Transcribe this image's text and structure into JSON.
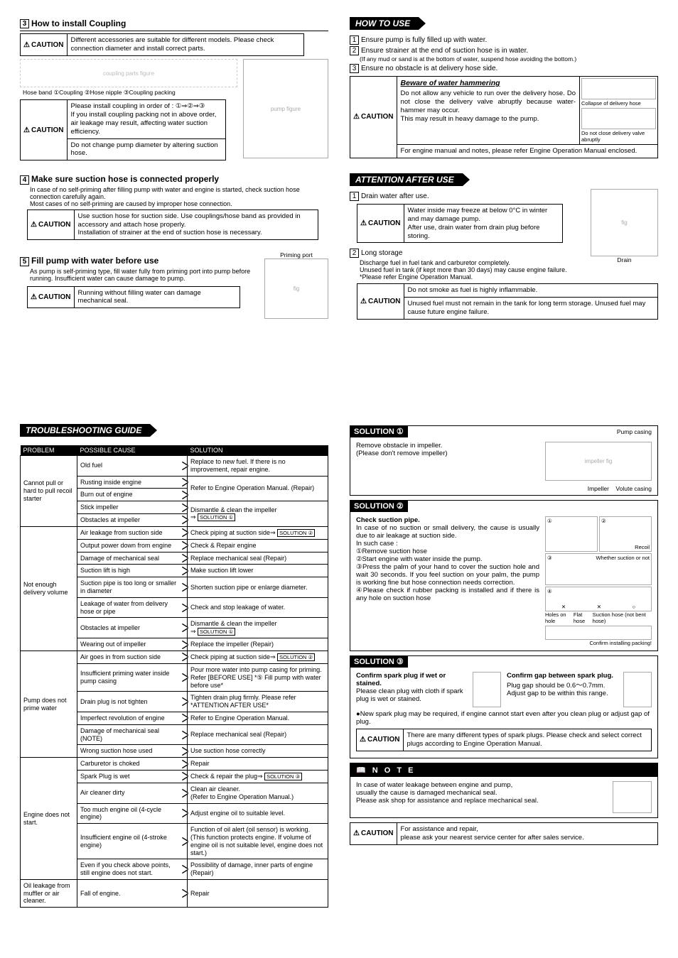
{
  "s3": {
    "title": "How to install Coupling",
    "caution1": "Different accessories are suitable for different models. Please check connection diameter and install correct parts.",
    "fig_labels": "Hose band   ①Coupling   ②Hose nipple   ③Coupling packing",
    "caution2a": "Please install coupling in order of : ①⇒②⇒③\nIf you install coupling packing not in above order, air leakage may result, affecting water suction efficiency.",
    "caution2b": "Do not change pump diameter by altering suction hose."
  },
  "s4": {
    "title": "Make sure suction hose is connected properly",
    "body1": "In case of no self-priming after filling pump with water and engine is started, check suction hose connection carefully again.",
    "body2": "Most cases of no self-priming are caused by improper hose connection.",
    "caution": "Use suction hose for suction side. Use couplings/hose band as provided in accessory and attach hose properly.\nInstallation of strainer at the end of suction hose is necessary."
  },
  "s5": {
    "title": "Fill pump with water before use",
    "body": "As pump is self-priming type, fill water fully from priming port into pump before running. Insufficient water can cause damage to pump.",
    "fig_label": "Priming port",
    "caution": "Running without filling water can damage mechanical seal."
  },
  "howto": {
    "header": "HOW TO  USE",
    "i1": "Ensure pump is fully filled up with water.",
    "i2": "Ensure strainer at the end of suction hose is in water.",
    "i2s": "(If any mud or sand is at the bottom of water, suspend hose avoiding the bottom.)",
    "i3": "Ensure no obstacle is at delivery hose side.",
    "beware_title": "Beware of water hammering",
    "beware": "Do not allow any vehicle to run over the delivery hose. Do not close the delivery valve abruptly because water-hammer may occur.\nThis may result in heavy damage to the pump.",
    "fig_a": "Collapse of delivery hose",
    "fig_b": "Do not close delivery valve abruptly",
    "manual": "For engine manual and notes, please refer Engine Operation Manual enclosed."
  },
  "after": {
    "header": "ATTENTION AFTER USE",
    "i1": "Drain water after use.",
    "caution1": "Water inside may freeze at below 0°C in winter and may damage pump.\nAfter use, drain water from drain plug before storing.",
    "fig_label": "Drain",
    "i2": "Long storage",
    "i2a": "Discharge fuel in fuel tank and carburetor completely.",
    "i2b": "Unused fuel in tank (if kept more than 30 days) may cause engine failure.",
    "i2c": "*Please refer Engine Operation Manual.",
    "caution2a": "Do not smoke as fuel is highly inflammable.",
    "caution2b": "Unused fuel must not remain in the tank for long term storage. Unused fuel may cause future engine failure."
  },
  "trouble": {
    "header": "TROUBLESHOOTING GUIDE",
    "cols": [
      "PROBLEM",
      "POSSIBLE CAUSE",
      "SOLUTION"
    ],
    "groups": [
      {
        "problem": "Cannot pull or hard to pull recoil starter",
        "rows": [
          [
            "Old fuel",
            "Replace to new fuel. If there is no improvement, repair engine."
          ],
          [
            "Rusting inside engine",
            "Refer to Engine Operation Manual. (Repair)"
          ],
          [
            "Burn out of engine",
            "Refer to Engine Operation Manual. (Repair)",
            true
          ],
          [
            "Stick impeller",
            "Dismantle & clean the impeller\n⇒ SOLUTION ①"
          ],
          [
            "Obstacles at impeller",
            "⇒ SOLUTION ①",
            true
          ]
        ]
      },
      {
        "problem": "Not enough delivery volume",
        "rows": [
          [
            "Air leakage from suction side",
            "Check piping at suction side⇒ SOLUTION ②"
          ],
          [
            "Output power down from engine",
            "Check & Repair engine"
          ],
          [
            "Damage of mechanical seal",
            "Replace mechanical seal (Repair)"
          ],
          [
            "Suction lift is high",
            "Make suction lift lower"
          ],
          [
            "Suction pipe is too long or smaller in diameter",
            "Shorten suction pipe or enlarge diameter."
          ],
          [
            "Leakage of water from delivery hose or pipe",
            "Check and stop leakage of water."
          ],
          [
            "Obstacles at impeller",
            "Dismantle & clean the impeller\n⇒ SOLUTION ①"
          ],
          [
            "Wearing out of impeller",
            "Replace the impeller (Repair)"
          ]
        ]
      },
      {
        "problem": "Pump does not prime water",
        "rows": [
          [
            "Air goes in from suction side",
            "Check piping at suction side⇒ SOLUTION ②"
          ],
          [
            "Insufficient priming water inside pump casing",
            "Pour more water into pump casing for priming. Refer [BEFORE USE] *⑤ Fill pump with water before use*"
          ],
          [
            "Drain plug is not tighten",
            "Tighten drain plug firmly. Please refer *ATTENTION AFTER USE*"
          ],
          [
            "Imperfect revolution of engine",
            "Refer to Engine Operation Manual."
          ],
          [
            "Damage of mechanical seal (NOTE)",
            "Replace mechanical seal (Repair)"
          ],
          [
            "Wrong suction hose used",
            "Use suction hose correctly"
          ]
        ]
      },
      {
        "problem": "Engine does not start.",
        "rows": [
          [
            "Carburetor is choked",
            "Repair"
          ],
          [
            "Spark Plug is wet",
            "Check & repair the plug⇒ SOLUTION ③"
          ],
          [
            "Air cleaner dirty",
            "Clean air cleaner.\n(Refer to Engine Operation Manual.)"
          ],
          [
            "Too much engine oil (4-cycle engine)",
            "Adjust engine oil to suitable level."
          ],
          [
            "Insufficient engine oil (4-stroke engine)",
            "Function of oil alert (oil sensor) is working. (This function protects engine. If volume of engine oil is not suitable level, engine does not start.)"
          ],
          [
            "Even if you check above points, still engine does not start.",
            "Possibility of damage, inner parts of engine (Repair)"
          ]
        ]
      },
      {
        "problem": "Oil leakage from muffler or air cleaner.",
        "rows": [
          [
            "Fall of engine.",
            "Repair"
          ]
        ]
      }
    ]
  },
  "sol1": {
    "head": "SOLUTION ①",
    "a": "Remove obstacle in impeller.",
    "b": "(Please don't remove impeller)",
    "labels": {
      "pc": "Pump casing",
      "imp": "Impeller",
      "vc": "Volute casing"
    }
  },
  "sol2": {
    "head": "SOLUTION ②",
    "title": "Check suction pipe.",
    "p1": "In case of no suction or small delivery, the cause is usually due to air leakage at suction side.",
    "p2": "In such case :",
    "l1": "①Remove suction hose",
    "l2": "②Start engine with water inside the pump.",
    "l3": "③Press the palm of your hand to cover the suction hole and wait 30 seconds. If you feel suction on your palm, the pump is working fine but hose connection needs correction.",
    "l4": "④Please check if rubber packing is installed and if there is any hole on suction hose",
    "fig": {
      "recoil": "Recoil",
      "whether": "Whether suction or not",
      "holes": "Holes on hole",
      "flat": "Flat hose",
      "suc": "Suction hose (not bent hose)",
      "confirm": "Confirm installing packing!"
    }
  },
  "sol3": {
    "head": "SOLUTION ③",
    "la": "Confirm spark plug if wet or stained.",
    "lb": "Please clean plug with cloth if spark plug is wet or stained.",
    "ra": "Confirm gap between spark plug.",
    "rb": "Plug gap should be 0.6～0.7mm. Adjust gap to be within this range.",
    "bullet": "●New spark plug may be required, if engine cannot start even after you clean plug or adjust gap of plug.",
    "caution": "There are many different types of spark plugs. Please check and select correct plugs according to Engine Operation Manual."
  },
  "note": {
    "head": "N O T E",
    "a": "In case of water leakage between engine and pump,",
    "b": "usually the cause is damaged mechanical seal.",
    "c": "Please ask shop for assistance and replace mechanical seal."
  },
  "final_caution": "For assistance and repair,\nplease ask your nearest service center for after sales service.",
  "caution_label": "CAUTION"
}
